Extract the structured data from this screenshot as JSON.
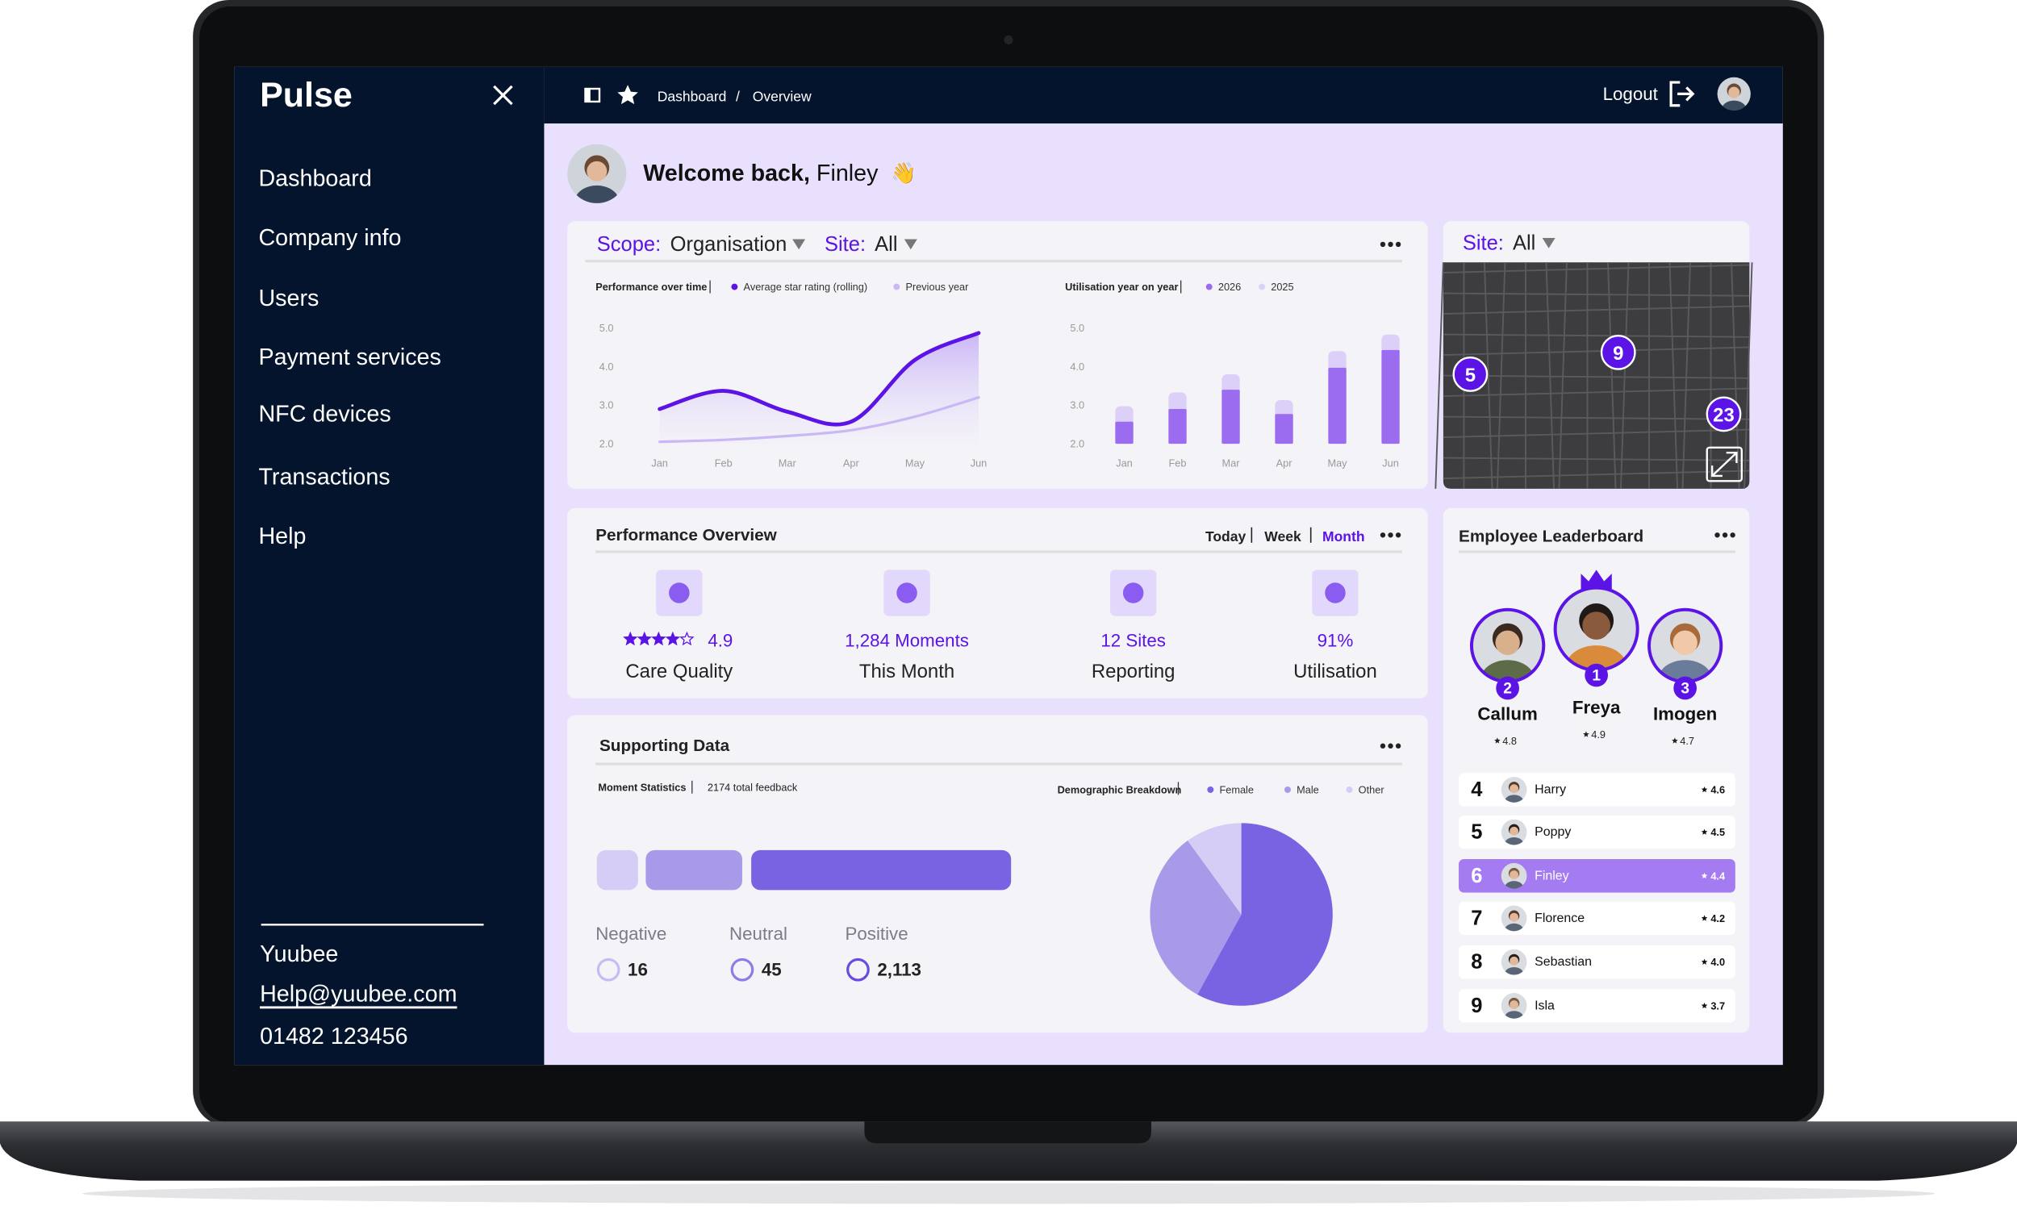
{
  "sidebar": {
    "brand": "Pulse",
    "nav": [
      "Dashboard",
      "Company info",
      "Users",
      "Payment services",
      "NFC devices",
      "Transactions",
      "Help"
    ],
    "company": "Yuubee",
    "email": "Help@yuubee.com",
    "phone": "01482 123456"
  },
  "topbar": {
    "breadcrumb": [
      "Dashboard",
      "Overview"
    ],
    "separator": "/",
    "logout": "Logout"
  },
  "welcome": {
    "greeting": "Welcome back,",
    "name": "Finley",
    "emoji": "👋"
  },
  "filters": {
    "scope_label": "Scope:",
    "scope": "Organisation",
    "site_label": "Site:",
    "site": "All"
  },
  "map": {
    "site_label": "Site:",
    "site": "All",
    "markers": [
      5,
      9,
      23
    ]
  },
  "performance_overview": {
    "title": "Performance Overview",
    "periods": [
      "Today",
      "Week",
      "Month"
    ],
    "active_period": "Month",
    "metrics": [
      {
        "value": "4.9",
        "label": "Care Quality"
      },
      {
        "value": "1,284 Moments",
        "label": "This Month"
      },
      {
        "value": "12 Sites",
        "label": "Reporting"
      },
      {
        "value": "91%",
        "label": "Utilisation"
      }
    ]
  },
  "supporting": {
    "title": "Supporting Data",
    "moment_title": "Moment Statistics",
    "feedback": "2174 total feedback",
    "sentiments": [
      {
        "label": "Negative",
        "count": "16"
      },
      {
        "label": "Neutral",
        "count": "45"
      },
      {
        "label": "Positive",
        "count": "2,113"
      }
    ]
  },
  "leaderboard": {
    "title": "Employee Leaderboard",
    "highlight": "Finley",
    "podium": [
      {
        "rank": 2,
        "name": "Callum",
        "rating": "4.8"
      },
      {
        "rank": 1,
        "name": "Freya",
        "rating": "4.9"
      },
      {
        "rank": 3,
        "name": "Imogen",
        "rating": "4.7"
      }
    ],
    "list": [
      {
        "rank": 4,
        "name": "Harry",
        "rating": "4.6"
      },
      {
        "rank": 5,
        "name": "Poppy",
        "rating": "4.5"
      },
      {
        "rank": 6,
        "name": "Finley",
        "rating": "4.4"
      },
      {
        "rank": 7,
        "name": "Florence",
        "rating": "4.2"
      },
      {
        "rank": 8,
        "name": "Sebastian",
        "rating": "4.0"
      },
      {
        "rank": 9,
        "name": "Isla",
        "rating": "3.7"
      }
    ]
  },
  "chart_data": [
    {
      "type": "line",
      "title": "Performance over time",
      "categories": [
        "Jan",
        "Feb",
        "Mar",
        "Apr",
        "May",
        "Jun"
      ],
      "series": [
        {
          "name": "Average star rating (rolling)",
          "color": "#5b13e6",
          "values": [
            2.9,
            3.37,
            2.83,
            2.57,
            4.17,
            4.87
          ]
        },
        {
          "name": "Previous year",
          "color": "#c9b8f5",
          "values": [
            2.05,
            2.1,
            2.2,
            2.35,
            2.7,
            3.2
          ]
        }
      ],
      "ylim": [
        2,
        5
      ],
      "yticks": [
        {
          "value": 2,
          "label": "2.0"
        },
        {
          "value": 3,
          "label": "3.0"
        },
        {
          "value": 4,
          "label": "4.0"
        },
        {
          "value": 5,
          "label": "5.0"
        }
      ],
      "grid": false
    },
    {
      "type": "bar",
      "title": "Utilisation year on year",
      "categories": [
        "Jan",
        "Feb",
        "Mar",
        "Apr",
        "May",
        "Jun"
      ],
      "series": [
        {
          "name": "2026",
          "color": "#9b6cf0",
          "values": [
            2.57,
            2.9,
            3.4,
            2.77,
            3.97,
            4.43
          ]
        },
        {
          "name": "2025",
          "color": "#dcd0f8",
          "values": [
            2.97,
            3.33,
            3.8,
            3.13,
            4.4,
            4.83
          ]
        }
      ],
      "ylim": [
        2,
        5
      ],
      "yticks": [
        {
          "value": 2,
          "label": "2.0"
        },
        {
          "value": 3,
          "label": "3.0"
        },
        {
          "value": 4,
          "label": "4.0"
        },
        {
          "value": 5,
          "label": "5.0"
        }
      ],
      "grid": false
    },
    {
      "type": "pie",
      "title": "Demographic Breakdown",
      "categories": [
        "Female",
        "Male",
        "Other"
      ],
      "values": [
        58,
        32,
        10
      ],
      "colors": [
        "#7a63e2",
        "#a99ae9",
        "#d6cdf6"
      ]
    }
  ]
}
